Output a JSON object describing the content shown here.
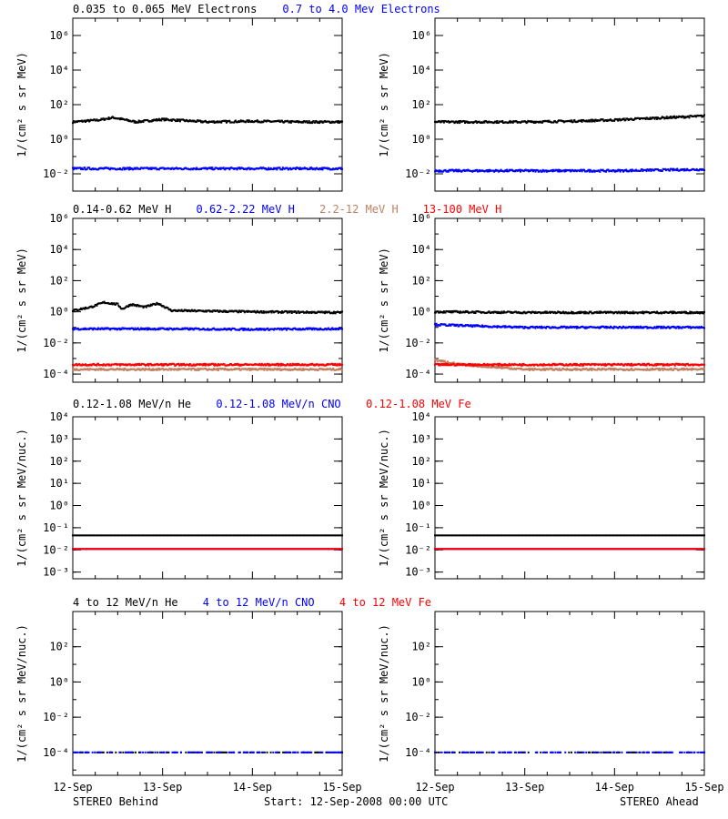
{
  "colors": {
    "axis": "#000000",
    "black": "#000000",
    "blue": "#0000ff",
    "tan": "#c08060",
    "red": "#ff0000"
  },
  "panels": [
    {
      "headers": [
        {
          "text": "0.035 to 0.065 MeV Electrons",
          "color": "#000000"
        },
        {
          "text": "0.7 to 4.0 Mev Electrons",
          "color": "#0000ff"
        }
      ]
    },
    {
      "headers": [
        {
          "text": "0.14-0.62 MeV H",
          "color": "#000000"
        },
        {
          "text": "0.62-2.22 MeV H",
          "color": "#0000ff"
        },
        {
          "text": "2.2-12 MeV H",
          "color": "#c08060"
        },
        {
          "text": "13-100 MeV H",
          "color": "#ff0000"
        }
      ]
    },
    {
      "headers": [
        {
          "text": "0.12-1.08 MeV/n He",
          "color": "#000000"
        },
        {
          "text": "0.12-1.08 MeV/n CNO",
          "color": "#0000ff"
        },
        {
          "text": "0.12-1.08 MeV Fe",
          "color": "#ff0000"
        }
      ]
    },
    {
      "headers": [
        {
          "text": "4 to 12 MeV/n He",
          "color": "#000000"
        },
        {
          "text": "4 to 12 MeV/n CNO",
          "color": "#0000ff"
        },
        {
          "text": "4 to 12 MeV Fe",
          "color": "#ff0000"
        }
      ]
    }
  ],
  "footer": {
    "left": "STEREO Behind",
    "center": "Start: 12-Sep-2008 00:00 UTC",
    "right": "STEREO Ahead"
  },
  "chart_data": [
    {
      "type": "scatter",
      "spacecraft": "STEREO Behind",
      "ylabel": "1/(cm² s sr MeV)",
      "ylim": [
        0.001,
        10000000
      ],
      "yscale": "log",
      "yticks": [
        {
          "v": 0.01,
          "t": "10⁻²"
        },
        {
          "v": 1,
          "t": "10⁰"
        },
        {
          "v": 100,
          "t": "10²"
        },
        {
          "v": 10000,
          "t": "10⁴"
        },
        {
          "v": 1000000,
          "t": "10⁶"
        }
      ],
      "xticks": [
        "12-Sep",
        "13-Sep",
        "14-Sep",
        "15-Sep"
      ],
      "xlim": [
        0,
        3
      ],
      "series": [
        {
          "name": "0.035 to 0.065 MeV Electrons",
          "color": "#000000",
          "points": [
            [
              0,
              10
            ],
            [
              0.3,
              13
            ],
            [
              0.45,
              18
            ],
            [
              0.7,
              10
            ],
            [
              1,
              14
            ],
            [
              1.5,
              10
            ],
            [
              2,
              11
            ],
            [
              2.5,
              10
            ],
            [
              3,
              10
            ]
          ]
        },
        {
          "name": "0.7 to 4.0 Mev Electrons",
          "color": "#0000ff",
          "points": [
            [
              0,
              0.02
            ],
            [
              1,
              0.02
            ],
            [
              2,
              0.02
            ],
            [
              3,
              0.02
            ]
          ]
        }
      ]
    },
    {
      "type": "scatter",
      "spacecraft": "STEREO Ahead",
      "ylabel": "1/(cm² s sr MeV)",
      "ylim": [
        0.001,
        10000000
      ],
      "yscale": "log",
      "yticks": [
        {
          "v": 0.01,
          "t": "10⁻²"
        },
        {
          "v": 1,
          "t": "10⁰"
        },
        {
          "v": 100,
          "t": "10²"
        },
        {
          "v": 10000,
          "t": "10⁴"
        },
        {
          "v": 1000000,
          "t": "10⁶"
        }
      ],
      "xticks": [
        "12-Sep",
        "13-Sep",
        "14-Sep",
        "15-Sep"
      ],
      "xlim": [
        0,
        3
      ],
      "series": [
        {
          "name": "0.035 to 0.065 MeV Electrons",
          "color": "#000000",
          "points": [
            [
              0,
              10
            ],
            [
              1,
              10
            ],
            [
              1.5,
              11
            ],
            [
              2,
              13
            ],
            [
              2.5,
              17
            ],
            [
              3,
              22
            ]
          ]
        },
        {
          "name": "0.7 to 4.0 Mev Electrons",
          "color": "#0000ff",
          "points": [
            [
              0,
              0.015
            ],
            [
              1,
              0.015
            ],
            [
              2,
              0.015
            ],
            [
              3,
              0.018
            ]
          ]
        }
      ]
    },
    {
      "type": "scatter",
      "spacecraft": "STEREO Behind",
      "ylabel": "1/(cm² s sr MeV)",
      "ylim": [
        3e-05,
        1000000
      ],
      "yscale": "log",
      "yticks": [
        {
          "v": 0.0001,
          "t": "10⁻⁴"
        },
        {
          "v": 0.01,
          "t": "10⁻²"
        },
        {
          "v": 1,
          "t": "10⁰"
        },
        {
          "v": 100,
          "t": "10²"
        },
        {
          "v": 10000,
          "t": "10⁴"
        },
        {
          "v": 1000000,
          "t": "10⁶"
        }
      ],
      "xticks": [
        "12-Sep",
        "13-Sep",
        "14-Sep",
        "15-Sep"
      ],
      "xlim": [
        0,
        3
      ],
      "series": [
        {
          "name": "0.14-0.62 MeV H",
          "color": "#000000",
          "points": [
            [
              0,
              1.2
            ],
            [
              0.2,
              2
            ],
            [
              0.35,
              4
            ],
            [
              0.5,
              3
            ],
            [
              0.55,
              1.5
            ],
            [
              0.65,
              3
            ],
            [
              0.8,
              2
            ],
            [
              0.95,
              3.5
            ],
            [
              1.1,
              1.2
            ],
            [
              2,
              1
            ],
            [
              3,
              0.9
            ]
          ]
        },
        {
          "name": "0.62-2.22 MeV H",
          "color": "#0000ff",
          "points": [
            [
              0,
              0.08
            ],
            [
              1,
              0.08
            ],
            [
              2,
              0.075
            ],
            [
              3,
              0.08
            ]
          ]
        },
        {
          "name": "2.2-12 MeV H",
          "color": "#c08060",
          "points": [
            [
              0,
              0.0002
            ],
            [
              1,
              0.0002
            ],
            [
              2,
              0.0002
            ],
            [
              3,
              0.0002
            ]
          ]
        },
        {
          "name": "13-100 MeV H",
          "color": "#ff0000",
          "points": [
            [
              0,
              0.0004
            ],
            [
              1,
              0.0004
            ],
            [
              2,
              0.0004
            ],
            [
              3,
              0.0004
            ]
          ]
        }
      ]
    },
    {
      "type": "scatter",
      "spacecraft": "STEREO Ahead",
      "ylabel": "1/(cm² s sr MeV)",
      "ylim": [
        3e-05,
        1000000
      ],
      "yscale": "log",
      "yticks": [
        {
          "v": 0.0001,
          "t": "10⁻⁴"
        },
        {
          "v": 0.01,
          "t": "10⁻²"
        },
        {
          "v": 1,
          "t": "10⁰"
        },
        {
          "v": 100,
          "t": "10²"
        },
        {
          "v": 10000,
          "t": "10⁴"
        },
        {
          "v": 1000000,
          "t": "10⁶"
        }
      ],
      "xticks": [
        "12-Sep",
        "13-Sep",
        "14-Sep",
        "15-Sep"
      ],
      "xlim": [
        0,
        3
      ],
      "series": [
        {
          "name": "0.14-0.62 MeV H",
          "color": "#000000",
          "points": [
            [
              0,
              1
            ],
            [
              1,
              0.9
            ],
            [
              2,
              0.9
            ],
            [
              3,
              0.9
            ]
          ]
        },
        {
          "name": "0.62-2.22 MeV H",
          "color": "#0000ff",
          "points": [
            [
              0,
              0.15
            ],
            [
              0.5,
              0.12
            ],
            [
              1,
              0.1
            ],
            [
              2,
              0.1
            ],
            [
              3,
              0.1
            ]
          ]
        },
        {
          "name": "2.2-12 MeV H",
          "color": "#c08060",
          "points": [
            [
              0,
              0.0008
            ],
            [
              0.3,
              0.0004
            ],
            [
              1,
              0.0002
            ],
            [
              3,
              0.0002
            ]
          ]
        },
        {
          "name": "13-100 MeV H",
          "color": "#ff0000",
          "points": [
            [
              0,
              0.0004
            ],
            [
              1,
              0.0004
            ],
            [
              2,
              0.0004
            ],
            [
              3,
              0.0004
            ]
          ]
        }
      ]
    },
    {
      "type": "scatter",
      "spacecraft": "STEREO Behind",
      "ylabel": "1/(cm² s sr MeV/nuc.)",
      "ylim": [
        0.0005,
        10000
      ],
      "yscale": "log",
      "yticks": [
        {
          "v": 0.001,
          "t": "10⁻³"
        },
        {
          "v": 0.01,
          "t": "10⁻²"
        },
        {
          "v": 0.1,
          "t": "10⁻¹"
        },
        {
          "v": 1,
          "t": "10⁰"
        },
        {
          "v": 10,
          "t": "10¹"
        },
        {
          "v": 100,
          "t": "10²"
        },
        {
          "v": 1000,
          "t": "10³"
        },
        {
          "v": 10000,
          "t": "10⁴"
        }
      ],
      "xticks": [
        "12-Sep",
        "13-Sep",
        "14-Sep",
        "15-Sep"
      ],
      "xlim": [
        0,
        3
      ],
      "series": [
        {
          "name": "0.12-1.08 MeV/n He",
          "color": "#000000",
          "points": [
            [
              0,
              0.045
            ],
            [
              1,
              0.045
            ],
            [
              2,
              0.045
            ],
            [
              3,
              0.045
            ]
          ]
        },
        {
          "name": "0.12-1.08 MeV/n CNO",
          "color": "#0000ff",
          "points": [
            [
              0,
              0.011
            ],
            [
              1,
              0.011
            ],
            [
              2,
              0.011
            ],
            [
              3,
              0.011
            ]
          ]
        },
        {
          "name": "0.12-1.08 MeV Fe",
          "color": "#ff0000",
          "points": [
            [
              0,
              0.011
            ],
            [
              3,
              0.011
            ]
          ]
        }
      ]
    },
    {
      "type": "scatter",
      "spacecraft": "STEREO Ahead",
      "ylabel": "1/(cm² s sr MeV/nuc.)",
      "ylim": [
        0.0005,
        10000
      ],
      "yscale": "log",
      "yticks": [
        {
          "v": 0.001,
          "t": "10⁻³"
        },
        {
          "v": 0.01,
          "t": "10⁻²"
        },
        {
          "v": 0.1,
          "t": "10⁻¹"
        },
        {
          "v": 1,
          "t": "10⁰"
        },
        {
          "v": 10,
          "t": "10¹"
        },
        {
          "v": 100,
          "t": "10²"
        },
        {
          "v": 1000,
          "t": "10³"
        },
        {
          "v": 10000,
          "t": "10⁴"
        }
      ],
      "xticks": [
        "12-Sep",
        "13-Sep",
        "14-Sep",
        "15-Sep"
      ],
      "xlim": [
        0,
        3
      ],
      "series": [
        {
          "name": "0.12-1.08 MeV/n He",
          "color": "#000000",
          "points": [
            [
              0,
              0.045
            ],
            [
              1,
              0.045
            ],
            [
              2,
              0.045
            ],
            [
              3,
              0.045
            ]
          ]
        },
        {
          "name": "0.12-1.08 MeV/n CNO",
          "color": "#0000ff",
          "points": [
            [
              0,
              0.011
            ],
            [
              1,
              0.011
            ],
            [
              2,
              0.011
            ],
            [
              3,
              0.011
            ]
          ]
        },
        {
          "name": "0.12-1.08 MeV Fe",
          "color": "#ff0000",
          "points": [
            [
              0,
              0.011
            ],
            [
              3,
              0.011
            ]
          ]
        }
      ]
    },
    {
      "type": "scatter",
      "spacecraft": "STEREO Behind",
      "ylabel": "1/(cm² s sr MeV/nuc.)",
      "ylim": [
        5e-06,
        10000
      ],
      "yscale": "log",
      "yticks": [
        {
          "v": 0.0001,
          "t": "10⁻⁴"
        },
        {
          "v": 0.01,
          "t": "10⁻²"
        },
        {
          "v": 1,
          "t": "10⁰"
        },
        {
          "v": 100,
          "t": "10²"
        }
      ],
      "xticks": [
        "12-Sep",
        "13-Sep",
        "14-Sep",
        "15-Sep"
      ],
      "xlim": [
        0,
        3
      ],
      "series": [
        {
          "name": "4 to 12 MeV/n He",
          "color": "#000000",
          "points": [
            [
              0,
              0.0001
            ],
            [
              3,
              0.0001
            ]
          ]
        },
        {
          "name": "4 to 12 MeV/n CNO",
          "color": "#0000ff",
          "points": [
            [
              0,
              0.0001
            ],
            [
              3,
              0.0001
            ]
          ]
        }
      ]
    },
    {
      "type": "scatter",
      "spacecraft": "STEREO Ahead",
      "ylabel": "1/(cm² s sr MeV/nuc.)",
      "ylim": [
        5e-06,
        10000
      ],
      "yscale": "log",
      "yticks": [
        {
          "v": 0.0001,
          "t": "10⁻⁴"
        },
        {
          "v": 0.01,
          "t": "10⁻²"
        },
        {
          "v": 1,
          "t": "10⁰"
        },
        {
          "v": 100,
          "t": "10²"
        }
      ],
      "xticks": [
        "12-Sep",
        "13-Sep",
        "14-Sep",
        "15-Sep"
      ],
      "xlim": [
        0,
        3
      ],
      "series": [
        {
          "name": "4 to 12 MeV/n He",
          "color": "#000000",
          "points": [
            [
              0,
              0.0001
            ],
            [
              3,
              0.0001
            ]
          ]
        },
        {
          "name": "4 to 12 MeV/n CNO",
          "color": "#0000ff",
          "points": [
            [
              0,
              0.0001
            ],
            [
              3,
              0.0001
            ]
          ]
        }
      ]
    }
  ]
}
